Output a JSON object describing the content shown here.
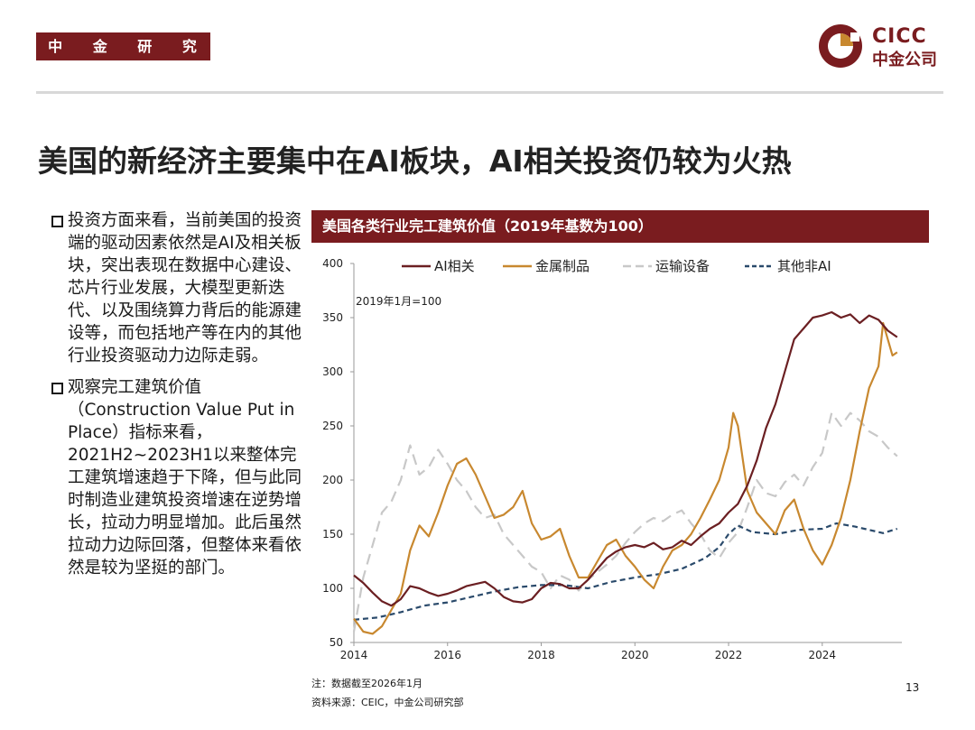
{
  "header": {
    "dept": "中 金 研 究 部",
    "logo_en": "CICC",
    "logo_cn": "中金公司"
  },
  "title": "美国的新经济主要集中在AI板块，AI相关投资仍较为火热",
  "bullets": [
    {
      "text": "投资方面来看，当前美国的投资端的驱动因素依然是AI及相关板块，突出表现在数据中心建设、芯片行业发展，大模型更新迭代、以及围绕算力背后的能源建设等，而包括地产等在内的其他行业投资驱动力边际走弱。"
    },
    {
      "text": "观察完工建筑价值（Construction Value Put in Place）指标来看，2021H2~2023H1以来整体完工建筑增速趋于下降，但与此同时制造业建筑投资增速在逆势增长，拉动力明显增加。此后虽然拉动力边际回落，但整体来看依然是较为坚挺的部门。"
    }
  ],
  "chart_header": "美国各类行业完工建筑价值（2019年基数为100）",
  "footnote": "注：数据截至2026年1月",
  "source": "资料来源：CEIC，中金公司研究部",
  "page_number": "13",
  "colors": {
    "brand": "#7a1c1f",
    "ai": "#6b1f22",
    "metal": "#c8882f",
    "transport": "#c8c8c8",
    "other": "#2a4a6b"
  },
  "chart_data": {
    "type": "line",
    "annotation": "2019年1月=100",
    "ylim": [
      50,
      400
    ],
    "yticks": [
      50,
      100,
      150,
      200,
      250,
      300,
      350,
      400
    ],
    "xlim": [
      2014,
      2025.7
    ],
    "xticks": [
      2014,
      2016,
      2018,
      2020,
      2022,
      2024
    ],
    "legend_position": "top",
    "series": [
      {
        "name": "AI相关",
        "color_key": "ai",
        "dash": "solid",
        "points": [
          [
            2014.0,
            112
          ],
          [
            2014.2,
            105
          ],
          [
            2014.4,
            96
          ],
          [
            2014.6,
            88
          ],
          [
            2014.8,
            84
          ],
          [
            2015.0,
            90
          ],
          [
            2015.2,
            102
          ],
          [
            2015.4,
            100
          ],
          [
            2015.6,
            96
          ],
          [
            2015.8,
            93
          ],
          [
            2016.0,
            95
          ],
          [
            2016.2,
            98
          ],
          [
            2016.4,
            102
          ],
          [
            2016.6,
            104
          ],
          [
            2016.8,
            106
          ],
          [
            2017.0,
            100
          ],
          [
            2017.2,
            92
          ],
          [
            2017.4,
            88
          ],
          [
            2017.6,
            87
          ],
          [
            2017.8,
            90
          ],
          [
            2018.0,
            100
          ],
          [
            2018.2,
            105
          ],
          [
            2018.4,
            104
          ],
          [
            2018.6,
            100
          ],
          [
            2018.8,
            100
          ],
          [
            2019.0,
            108
          ],
          [
            2019.2,
            118
          ],
          [
            2019.4,
            128
          ],
          [
            2019.6,
            134
          ],
          [
            2019.8,
            138
          ],
          [
            2020.0,
            140
          ],
          [
            2020.2,
            138
          ],
          [
            2020.4,
            142
          ],
          [
            2020.6,
            136
          ],
          [
            2020.8,
            138
          ],
          [
            2021.0,
            144
          ],
          [
            2021.2,
            140
          ],
          [
            2021.4,
            148
          ],
          [
            2021.6,
            155
          ],
          [
            2021.8,
            160
          ],
          [
            2022.0,
            170
          ],
          [
            2022.2,
            178
          ],
          [
            2022.4,
            195
          ],
          [
            2022.6,
            218
          ],
          [
            2022.8,
            248
          ],
          [
            2023.0,
            270
          ],
          [
            2023.2,
            300
          ],
          [
            2023.4,
            330
          ],
          [
            2023.6,
            340
          ],
          [
            2023.8,
            350
          ],
          [
            2024.0,
            352
          ],
          [
            2024.2,
            355
          ],
          [
            2024.4,
            350
          ],
          [
            2024.6,
            353
          ],
          [
            2024.8,
            345
          ],
          [
            2025.0,
            352
          ],
          [
            2025.2,
            348
          ],
          [
            2025.4,
            338
          ],
          [
            2025.6,
            332
          ]
        ]
      },
      {
        "name": "金属制品",
        "color_key": "metal",
        "dash": "solid",
        "points": [
          [
            2014.0,
            72
          ],
          [
            2014.2,
            60
          ],
          [
            2014.4,
            58
          ],
          [
            2014.6,
            65
          ],
          [
            2014.8,
            80
          ],
          [
            2015.0,
            95
          ],
          [
            2015.2,
            135
          ],
          [
            2015.4,
            158
          ],
          [
            2015.6,
            148
          ],
          [
            2015.8,
            170
          ],
          [
            2016.0,
            195
          ],
          [
            2016.2,
            215
          ],
          [
            2016.4,
            220
          ],
          [
            2016.6,
            205
          ],
          [
            2016.8,
            185
          ],
          [
            2017.0,
            165
          ],
          [
            2017.2,
            168
          ],
          [
            2017.4,
            175
          ],
          [
            2017.6,
            190
          ],
          [
            2017.8,
            160
          ],
          [
            2018.0,
            145
          ],
          [
            2018.2,
            148
          ],
          [
            2018.4,
            155
          ],
          [
            2018.6,
            130
          ],
          [
            2018.8,
            110
          ],
          [
            2019.0,
            110
          ],
          [
            2019.2,
            125
          ],
          [
            2019.4,
            140
          ],
          [
            2019.6,
            145
          ],
          [
            2019.8,
            130
          ],
          [
            2020.0,
            120
          ],
          [
            2020.2,
            108
          ],
          [
            2020.4,
            100
          ],
          [
            2020.6,
            120
          ],
          [
            2020.8,
            135
          ],
          [
            2021.0,
            140
          ],
          [
            2021.2,
            150
          ],
          [
            2021.4,
            165
          ],
          [
            2021.6,
            182
          ],
          [
            2021.8,
            200
          ],
          [
            2022.0,
            230
          ],
          [
            2022.1,
            262
          ],
          [
            2022.2,
            250
          ],
          [
            2022.4,
            190
          ],
          [
            2022.6,
            170
          ],
          [
            2022.8,
            160
          ],
          [
            2023.0,
            150
          ],
          [
            2023.2,
            172
          ],
          [
            2023.4,
            182
          ],
          [
            2023.6,
            155
          ],
          [
            2023.8,
            135
          ],
          [
            2024.0,
            122
          ],
          [
            2024.2,
            140
          ],
          [
            2024.4,
            165
          ],
          [
            2024.6,
            200
          ],
          [
            2024.8,
            245
          ],
          [
            2025.0,
            285
          ],
          [
            2025.2,
            305
          ],
          [
            2025.3,
            345
          ],
          [
            2025.4,
            330
          ],
          [
            2025.5,
            315
          ],
          [
            2025.6,
            318
          ]
        ]
      },
      {
        "name": "运输设备",
        "color_key": "transport",
        "dash": "long",
        "points": [
          [
            2014.0,
            60
          ],
          [
            2014.2,
            110
          ],
          [
            2014.4,
            140
          ],
          [
            2014.6,
            170
          ],
          [
            2014.8,
            180
          ],
          [
            2015.0,
            200
          ],
          [
            2015.2,
            232
          ],
          [
            2015.4,
            205
          ],
          [
            2015.6,
            212
          ],
          [
            2015.8,
            228
          ],
          [
            2016.0,
            215
          ],
          [
            2016.2,
            200
          ],
          [
            2016.4,
            190
          ],
          [
            2016.6,
            175
          ],
          [
            2016.8,
            165
          ],
          [
            2017.0,
            168
          ],
          [
            2017.2,
            150
          ],
          [
            2017.4,
            140
          ],
          [
            2017.6,
            130
          ],
          [
            2017.8,
            120
          ],
          [
            2018.0,
            115
          ],
          [
            2018.2,
            100
          ],
          [
            2018.4,
            112
          ],
          [
            2018.6,
            108
          ],
          [
            2018.8,
            98
          ],
          [
            2019.0,
            108
          ],
          [
            2019.2,
            115
          ],
          [
            2019.4,
            122
          ],
          [
            2019.6,
            130
          ],
          [
            2019.8,
            142
          ],
          [
            2020.0,
            152
          ],
          [
            2020.2,
            160
          ],
          [
            2020.4,
            165
          ],
          [
            2020.6,
            162
          ],
          [
            2020.8,
            168
          ],
          [
            2021.0,
            172
          ],
          [
            2021.2,
            160
          ],
          [
            2021.4,
            150
          ],
          [
            2021.6,
            135
          ],
          [
            2021.8,
            128
          ],
          [
            2022.0,
            142
          ],
          [
            2022.2,
            152
          ],
          [
            2022.4,
            175
          ],
          [
            2022.6,
            200
          ],
          [
            2022.8,
            188
          ],
          [
            2023.0,
            185
          ],
          [
            2023.2,
            198
          ],
          [
            2023.4,
            205
          ],
          [
            2023.6,
            195
          ],
          [
            2023.8,
            212
          ],
          [
            2024.0,
            225
          ],
          [
            2024.2,
            262
          ],
          [
            2024.4,
            250
          ],
          [
            2024.6,
            262
          ],
          [
            2024.8,
            255
          ],
          [
            2025.0,
            245
          ],
          [
            2025.2,
            240
          ],
          [
            2025.4,
            230
          ],
          [
            2025.6,
            222
          ]
        ]
      },
      {
        "name": "其他非AI",
        "color_key": "other",
        "dash": "short",
        "points": [
          [
            2014.0,
            71
          ],
          [
            2014.5,
            73
          ],
          [
            2015.0,
            78
          ],
          [
            2015.5,
            84
          ],
          [
            2016.0,
            87
          ],
          [
            2016.5,
            92
          ],
          [
            2017.0,
            97
          ],
          [
            2017.5,
            101
          ],
          [
            2018.0,
            103
          ],
          [
            2018.5,
            103
          ],
          [
            2019.0,
            100
          ],
          [
            2019.5,
            106
          ],
          [
            2020.0,
            110
          ],
          [
            2020.5,
            113
          ],
          [
            2021.0,
            118
          ],
          [
            2021.5,
            128
          ],
          [
            2021.8,
            138
          ],
          [
            2022.0,
            150
          ],
          [
            2022.2,
            158
          ],
          [
            2022.5,
            152
          ],
          [
            2023.0,
            150
          ],
          [
            2023.5,
            154
          ],
          [
            2024.0,
            155
          ],
          [
            2024.3,
            160
          ],
          [
            2024.7,
            157
          ],
          [
            2025.0,
            154
          ],
          [
            2025.3,
            151
          ],
          [
            2025.6,
            155
          ]
        ]
      }
    ]
  }
}
